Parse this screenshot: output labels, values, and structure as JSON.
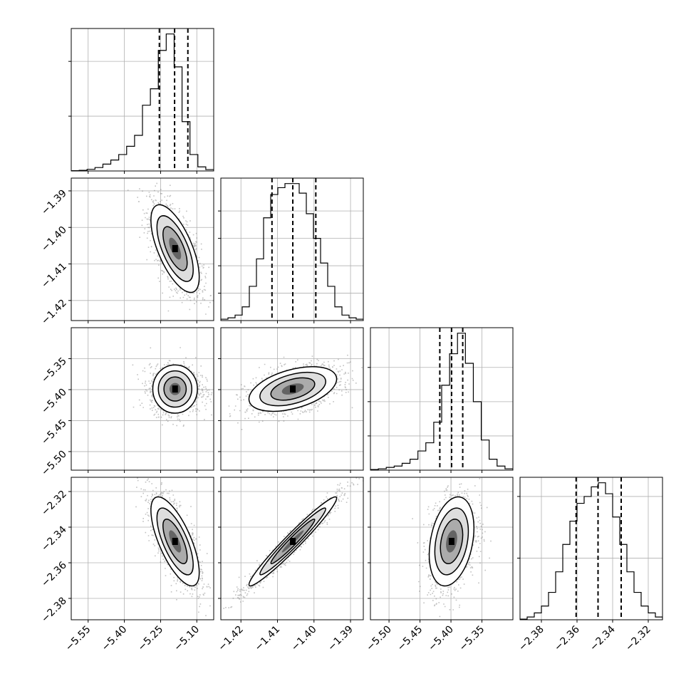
{
  "chart_data": {
    "type": "corner",
    "grid": true,
    "parameters": [
      {
        "range": [
          -5.62,
          -5.03
        ],
        "ticks": [
          -5.55,
          -5.4,
          -5.25,
          -5.1
        ],
        "tick_labels": [
          "−5.55",
          "−5.40",
          "−5.25",
          "−5.10"
        ],
        "quantiles": [
          -5.255,
          -5.192,
          -5.137
        ],
        "mean": -5.19,
        "std": 0.05,
        "hist_counts": [
          0.002,
          0.005,
          0.012,
          0.025,
          0.05,
          0.08,
          0.12,
          0.18,
          0.26,
          0.48,
          0.6,
          0.88,
          1.0,
          0.76,
          0.36,
          0.12,
          0.03,
          0.01
        ],
        "hist_edges_start": -5.62,
        "hist_edges_end": -5.03,
        "hist_ticks_y": [
          0.4,
          0.8
        ]
      },
      {
        "range": [
          -1.4255,
          -1.3865
        ],
        "ticks": [
          -1.42,
          -1.41,
          -1.4,
          -1.39
        ],
        "tick_labels": [
          "−1.42",
          "−1.41",
          "−1.40",
          "−1.39"
        ],
        "quantiles": [
          -1.4115,
          -1.4058,
          -1.3995
        ],
        "mean": -1.4058,
        "std": 0.006,
        "hist_counts": [
          0.01,
          0.02,
          0.04,
          0.1,
          0.25,
          0.45,
          0.75,
          0.92,
          0.97,
          1.0,
          1.0,
          0.93,
          0.78,
          0.6,
          0.42,
          0.25,
          0.1,
          0.04,
          0.02,
          0.01
        ],
        "hist_edges_start": -1.4255,
        "hist_edges_end": -1.3865,
        "hist_ticks_y": [
          0.2,
          0.4,
          0.6,
          0.8
        ]
      },
      {
        "range": [
          -5.53,
          -5.3
        ],
        "ticks": [
          -5.5,
          -5.45,
          -5.4,
          -5.35
        ],
        "tick_labels": [
          "−5.50",
          "−5.45",
          "−5.40",
          "−5.35"
        ],
        "quantiles": [
          -5.418,
          -5.399,
          -5.381
        ],
        "mean": -5.399,
        "std": 0.018,
        "hist_counts": [
          0.005,
          0.01,
          0.02,
          0.03,
          0.05,
          0.08,
          0.14,
          0.2,
          0.35,
          0.62,
          0.85,
          1.0,
          0.78,
          0.5,
          0.22,
          0.08,
          0.03,
          0.01
        ],
        "hist_edges_start": -5.53,
        "hist_edges_end": -5.3,
        "hist_ticks_y": [
          0.25,
          0.5,
          0.75
        ]
      },
      {
        "range": [
          -2.392,
          -2.312
        ],
        "ticks": [
          -2.38,
          -2.36,
          -2.34,
          -2.32
        ],
        "tick_labels": [
          "−2.38",
          "−2.36",
          "−2.34",
          "−2.32"
        ],
        "quantiles": [
          -2.3605,
          -2.3482,
          -2.3352
        ],
        "mean": -2.348,
        "std": 0.0125,
        "hist_counts": [
          0.005,
          0.02,
          0.05,
          0.1,
          0.2,
          0.35,
          0.55,
          0.72,
          0.85,
          0.9,
          0.97,
          1.0,
          0.92,
          0.75,
          0.55,
          0.35,
          0.2,
          0.1,
          0.05,
          0.02
        ],
        "hist_edges_start": -2.392,
        "hist_edges_end": -2.312,
        "hist_ticks_y": [
          0.45,
          0.9
        ]
      }
    ],
    "correlations": {
      "1,0": -0.65,
      "2,0": 0.0,
      "2,1": 0.45,
      "3,0": -0.7,
      "3,1": 0.97,
      "3,2": 0.3
    }
  }
}
